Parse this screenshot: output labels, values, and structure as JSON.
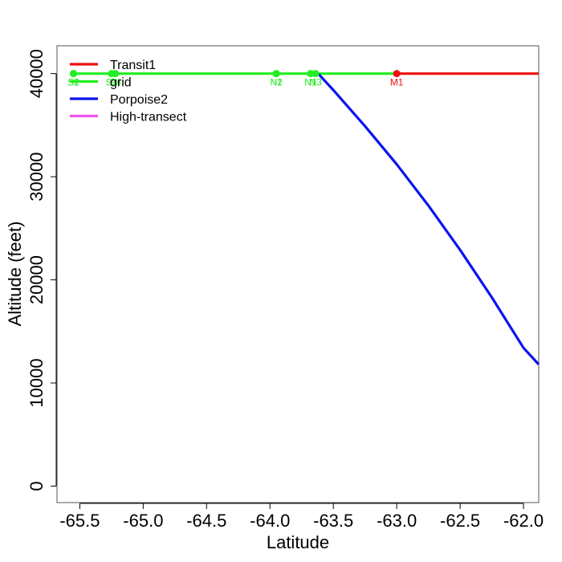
{
  "chart_data": {
    "type": "line",
    "title": "",
    "xlabel": "Latitude",
    "ylabel": "Altitude (feet)",
    "xlim": [
      -65.68,
      -61.88
    ],
    "ylim": [
      -1600,
      42700
    ],
    "x_ticks": [
      -65.5,
      -65.0,
      -64.5,
      -64.0,
      -63.5,
      -63.0,
      -62.5,
      -62.0
    ],
    "x_tick_labels": [
      "-65.5",
      "-65.0",
      "-64.5",
      "-64.0",
      "-63.5",
      "-63.0",
      "-62.5",
      "-62.0"
    ],
    "y_ticks": [
      0,
      10000,
      20000,
      30000,
      40000
    ],
    "y_tick_labels": [
      "0",
      "10000",
      "20000",
      "30000",
      "40000"
    ],
    "grid": false,
    "legend_position": "top-left",
    "series": [
      {
        "name": "Transit1",
        "color": "#ee1111",
        "x": [
          -63.0,
          -62.5,
          -62.0,
          -61.88
        ],
        "y": [
          40000,
          40000,
          40000,
          40000
        ]
      },
      {
        "name": "grid",
        "color": "#22ee22",
        "x": [
          -65.55,
          -65.25,
          -65.22,
          -63.95,
          -63.68,
          -63.65,
          -63.62,
          -63.0
        ],
        "y": [
          40000,
          40000,
          40000,
          40000,
          40000,
          40000,
          40000,
          40000
        ]
      },
      {
        "name": "Porpoise2",
        "color": "#0a14ee",
        "x": [
          -63.62,
          -63.5,
          -63.25,
          -63.0,
          -62.75,
          -62.5,
          -62.25,
          -62.0,
          -61.88
        ],
        "y": [
          40000,
          38400,
          34900,
          31200,
          27200,
          22900,
          18300,
          13400,
          11800
        ]
      },
      {
        "name": "High-transect",
        "color": "#ee55ee",
        "x": [],
        "y": []
      }
    ],
    "point_markers": [
      {
        "x": -65.55,
        "y": 40000,
        "label": "S1",
        "color": "#22ee22"
      },
      {
        "x": -65.55,
        "y": 40000,
        "label": "S2",
        "color": "#22ee22"
      },
      {
        "x": -65.25,
        "y": 40000,
        "label": "S3",
        "color": "#22ee22"
      },
      {
        "x": -65.22,
        "y": 40000,
        "label": "S4",
        "color": "#22ee22"
      },
      {
        "x": -63.95,
        "y": 40000,
        "label": "N1",
        "color": "#22ee22"
      },
      {
        "x": -63.95,
        "y": 40000,
        "label": "N2",
        "color": "#22ee22"
      },
      {
        "x": -63.68,
        "y": 40000,
        "label": "N1",
        "color": "#22ee22"
      },
      {
        "x": -63.64,
        "y": 40000,
        "label": "N3",
        "color": "#22ee22"
      },
      {
        "x": -63.0,
        "y": 40000,
        "label": "M1",
        "color": "#ee1111"
      }
    ]
  }
}
